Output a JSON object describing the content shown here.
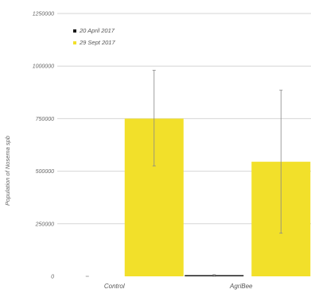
{
  "chart_data": {
    "type": "bar",
    "title": "",
    "xlabel": "",
    "ylabel": "Population of Nosema spb",
    "ylim": [
      0,
      1250000
    ],
    "yticks": [
      0,
      250000,
      500000,
      750000,
      1000000,
      1250000
    ],
    "ytick_labels": [
      "0",
      "250000",
      "500000",
      "750000",
      "1000000",
      "1250000"
    ],
    "categories": [
      "Control",
      "AgriBee"
    ],
    "grid": true,
    "legend_position": "top-left",
    "series": [
      {
        "name": "20 April 2017",
        "color": "#1a1a1a",
        "values": [
          0,
          5000
        ],
        "error_low": [
          0,
          0
        ],
        "error_high": [
          0,
          8000
        ]
      },
      {
        "name": "29 Sept 2017",
        "color": "#f2e02a",
        "values": [
          750000,
          545000
        ],
        "error_low": [
          525000,
          205000
        ],
        "error_high": [
          980000,
          885000
        ]
      }
    ]
  }
}
